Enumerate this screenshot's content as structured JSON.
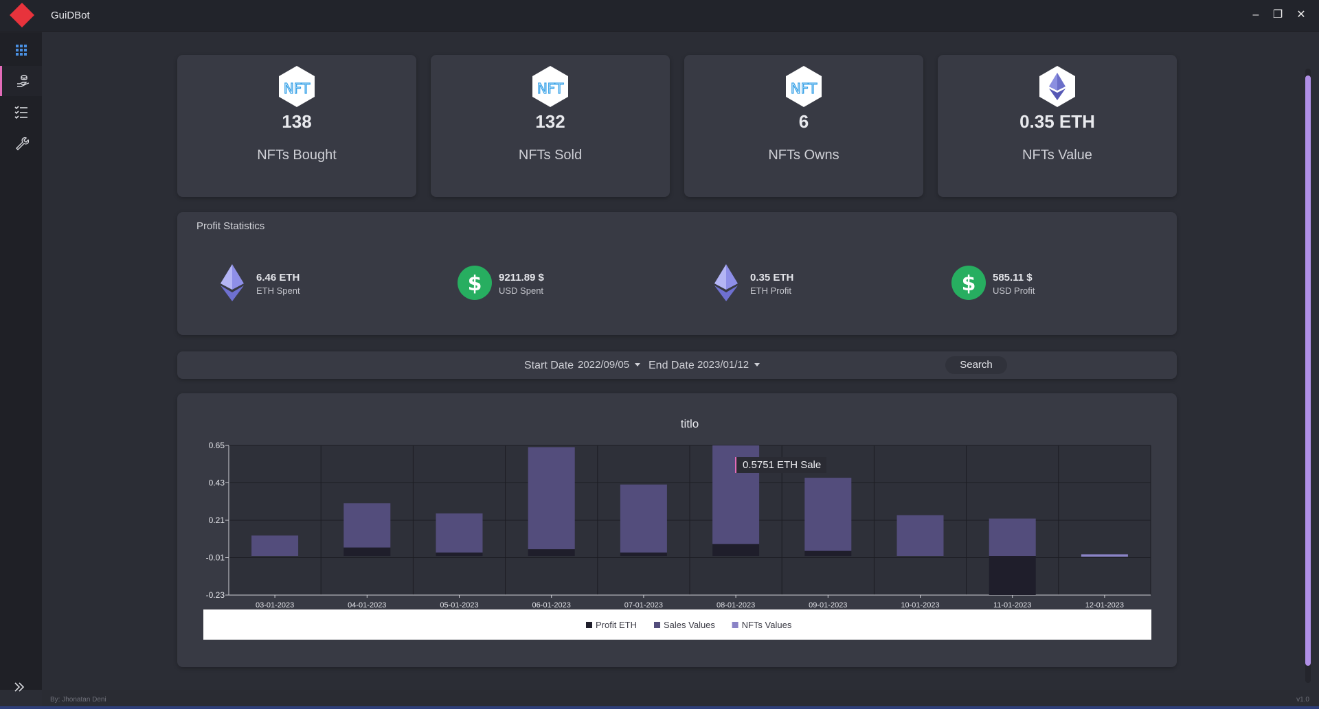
{
  "window": {
    "title": "GuiDBot",
    "minimize": "–",
    "maximize": "❐",
    "close": "✕"
  },
  "sidebar": {
    "items": [
      {
        "icon": "grid-icon"
      },
      {
        "icon": "hand-coins-icon",
        "active": true
      },
      {
        "icon": "checklist-icon"
      },
      {
        "icon": "wrench-icon"
      }
    ]
  },
  "stats": [
    {
      "value": "138",
      "label": "NFTs Bought",
      "icon": "nft-icon"
    },
    {
      "value": "132",
      "label": "NFTs Sold",
      "icon": "nft-icon"
    },
    {
      "value": "6",
      "label": "NFTs Owns",
      "icon": "nft-icon"
    },
    {
      "value": "0.35 ETH",
      "label": "NFTs Value",
      "icon": "ethereum-icon"
    }
  ],
  "profit": {
    "title": "Profit Statistics",
    "items": [
      {
        "value": "6.46 ETH",
        "label": "ETH Spent",
        "icon": "ethereum-icon"
      },
      {
        "value": "9211.89 $",
        "label": "USD Spent",
        "icon": "dollar-icon"
      },
      {
        "value": "0.35 ETH",
        "label": "ETH Profit",
        "icon": "ethereum-icon"
      },
      {
        "value": "585.11 $",
        "label": "USD Profit",
        "icon": "dollar-icon"
      }
    ]
  },
  "filter": {
    "start_label": "Start Date",
    "start_value": "2022/09/05",
    "end_label": "End Date",
    "end_value": "2023/01/12",
    "search_label": "Search"
  },
  "chart_data": {
    "type": "bar",
    "title": "titlo",
    "categories": [
      "03-01-2023",
      "04-01-2023",
      "05-01-2023",
      "06-01-2023",
      "07-01-2023",
      "08-01-2023",
      "09-01-2023",
      "10-01-2023",
      "11-01-2023",
      "12-01-2023"
    ],
    "yticks": [
      "0.65",
      "0.43",
      "0.21",
      "-0.01",
      "-0.23"
    ],
    "ylim": [
      -0.23,
      0.65
    ],
    "series": [
      {
        "name": "Profit ETH",
        "color": "#1f1e2b",
        "values": [
          0.0,
          0.05,
          0.02,
          0.04,
          0.02,
          0.07,
          0.03,
          0.0,
          -0.23,
          0.0
        ]
      },
      {
        "name": "Sales Values",
        "color": "#534d7c",
        "values": [
          0.12,
          0.31,
          0.25,
          0.64,
          0.42,
          0.65,
          0.46,
          0.24,
          0.22,
          0.0
        ]
      },
      {
        "name": "NFTs Values",
        "color": "#8a83c6",
        "values": [
          0,
          0,
          0,
          0,
          0,
          0,
          0,
          0,
          0,
          0.01
        ]
      }
    ],
    "tooltip": "0.5751 ETH Sale",
    "legend_position": "bottom",
    "grid": true
  },
  "footer": {
    "author": "By: Jhonatan Deni",
    "version": "v1.0"
  }
}
